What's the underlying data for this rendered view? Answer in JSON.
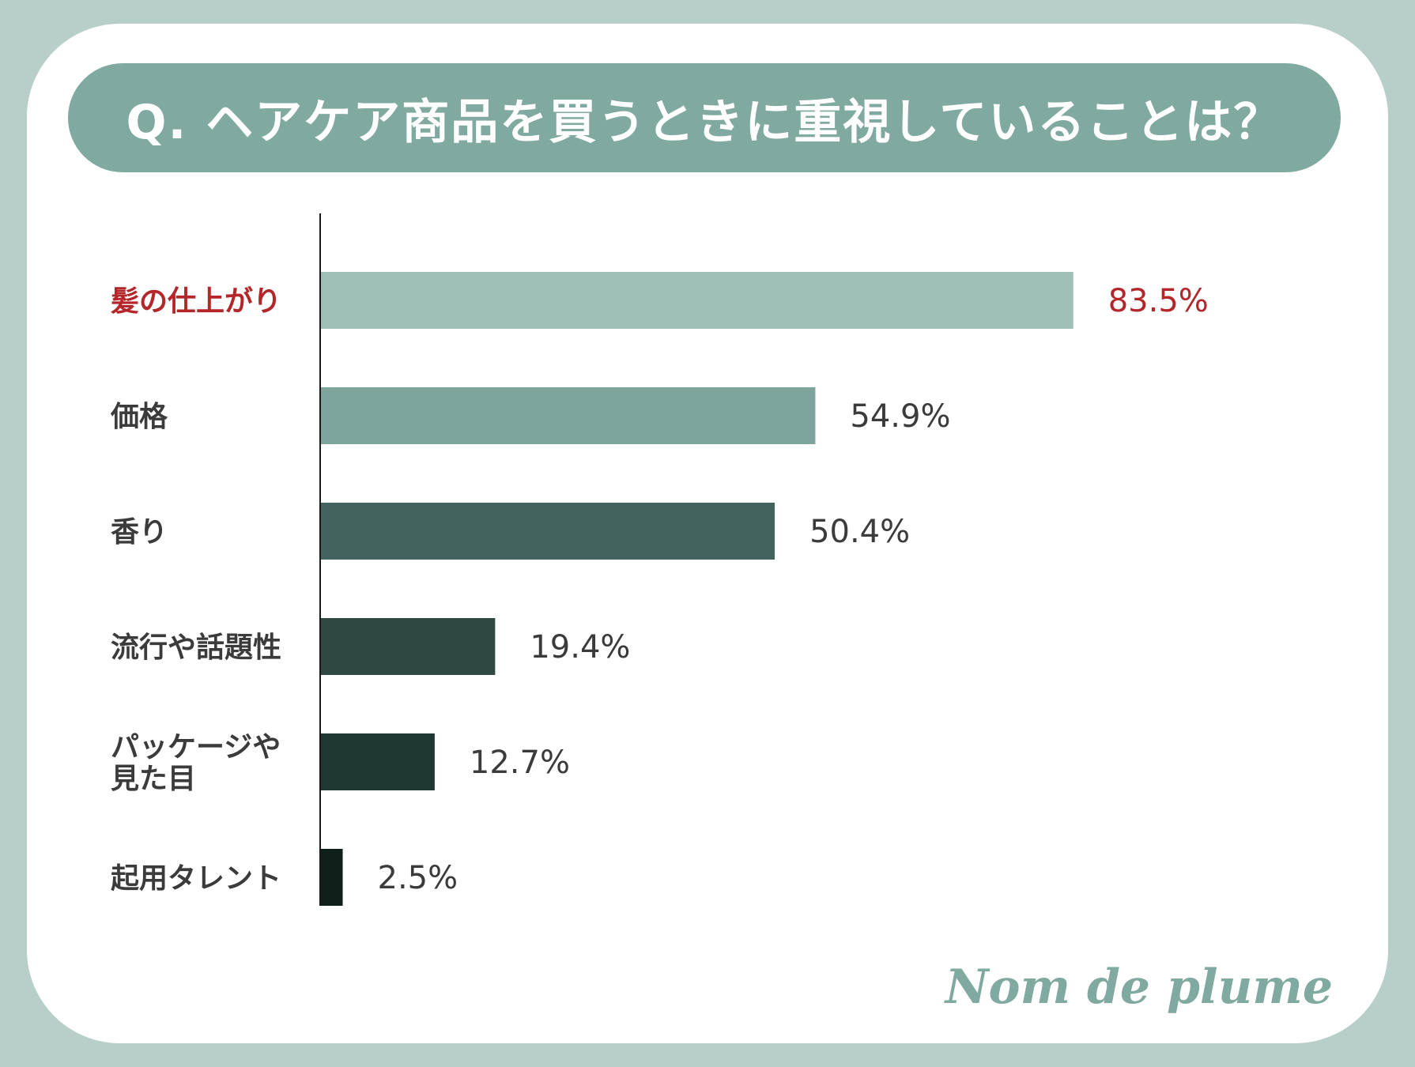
{
  "chart_data": {
    "type": "bar",
    "orientation": "horizontal",
    "title": "Q. ヘアケア商品を買うときに重視していることは？",
    "categories": [
      "髪の仕上がり",
      "価格",
      "香り",
      "流行や話題性",
      "パッケージや\n見た目",
      "起用タレント"
    ],
    "values": [
      83.5,
      54.9,
      50.4,
      19.4,
      12.7,
      2.5
    ],
    "value_labels": [
      "83.5%",
      "54.9%",
      "50.4%",
      "19.4%",
      "12.7%",
      "2.5%"
    ],
    "bar_colors": [
      "#9fc0b6",
      "#7ea59b",
      "#43645c",
      "#2f4841",
      "#1f3831",
      "#0e1f1a"
    ],
    "highlight_index": 0,
    "highlight_color": "#b3262a",
    "xlim": [
      0,
      100
    ],
    "grid": false,
    "legend": "none"
  },
  "brand": {
    "logo_text": "Nom de plume"
  },
  "colors": {
    "background": "#b7cfc8",
    "title_pill": "#80a99f",
    "text": "#3b3b3b"
  }
}
